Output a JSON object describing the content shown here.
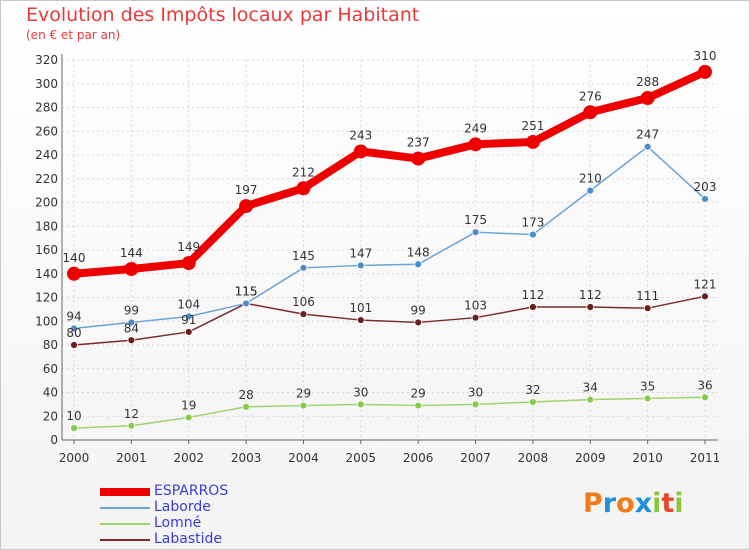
{
  "title": "Evolution des Impôts locaux par Habitant",
  "subtitle": "(en € et par an)",
  "logo": {
    "text": "Proxiti",
    "letter_colors": [
      "#f07a1c",
      "#1e8fd8",
      "#f07a1c",
      "#1e8fd8",
      "#8cc63f",
      "#e8472a",
      "#8cc63f"
    ]
  },
  "chart_data": {
    "type": "line",
    "x": [
      "2000",
      "2001",
      "2002",
      "2003",
      "2004",
      "2005",
      "2006",
      "2007",
      "2008",
      "2009",
      "2010",
      "2011"
    ],
    "ylim": [
      0,
      320
    ],
    "yticks": [
      0,
      20,
      40,
      60,
      80,
      100,
      120,
      140,
      160,
      180,
      200,
      220,
      240,
      260,
      280,
      300,
      320
    ],
    "grid": true,
    "legend_position": "bottom-left",
    "series": [
      {
        "name": "ESPARROS",
        "color": "#ee0000",
        "marker_fill": "#ee0000",
        "values": [
          140,
          144,
          149,
          197,
          212,
          243,
          237,
          249,
          251,
          276,
          288,
          310
        ]
      },
      {
        "name": "Laborde",
        "color": "#6aa3d5",
        "marker_fill": "#4a8ccc",
        "values": [
          94,
          99,
          104,
          115,
          145,
          147,
          148,
          175,
          173,
          210,
          247,
          203
        ]
      },
      {
        "name": "Lomné",
        "color": "#9ad46a",
        "marker_fill": "#86cc4c",
        "values": [
          10,
          12,
          19,
          28,
          29,
          30,
          29,
          30,
          32,
          34,
          35,
          36
        ]
      },
      {
        "name": "Labastide",
        "color": "#7a2c2c",
        "marker_fill": "#6a1e1e",
        "values": [
          80,
          84,
          91,
          115,
          106,
          101,
          99,
          103,
          112,
          112,
          111,
          121
        ]
      }
    ]
  }
}
